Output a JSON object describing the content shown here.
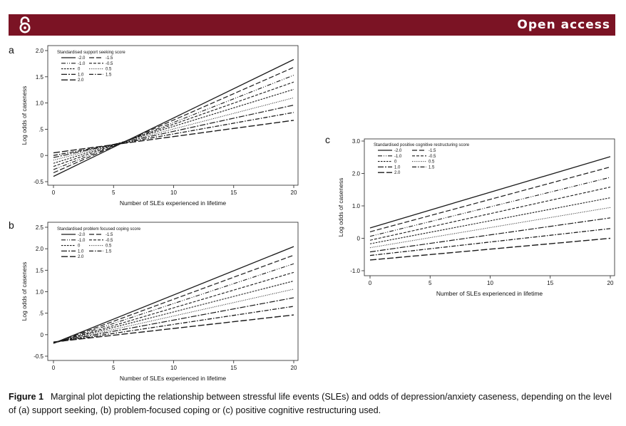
{
  "header": {
    "open_access_label": "Open access"
  },
  "caption": {
    "figure_label": "Figure 1",
    "text": "Marginal plot depicting the relationship between stressful life events (SLEs) and odds of depression/anxiety caseness, depending on the level of (a) support seeking, (b) problem-focused coping or (c) positive cognitive restructuring used."
  },
  "chart_data": [
    {
      "type": "line",
      "panel": "a",
      "legend_title": "Standardised support seeking score",
      "xlabel": "Number of SLEs experienced in lifetime",
      "ylabel": "Log odds of caseness",
      "xlim": [
        0,
        20
      ],
      "ylim": [
        -0.5,
        2.0
      ],
      "xticks": [
        0,
        5,
        10,
        15,
        20
      ],
      "yticks": [
        -0.5,
        0,
        0.5,
        1.0,
        1.5,
        2.0
      ],
      "ytick_labels": [
        "-0.5",
        "0",
        ".5",
        "1.0",
        "1.5",
        "2.0"
      ],
      "series": [
        {
          "name": "-2.0",
          "x": [
            0,
            20
          ],
          "y": [
            -0.4,
            1.83
          ]
        },
        {
          "name": "-1.5",
          "x": [
            0,
            20
          ],
          "y": [
            -0.33,
            1.68
          ]
        },
        {
          "name": "-1.0",
          "x": [
            0,
            20
          ],
          "y": [
            -0.27,
            1.53
          ]
        },
        {
          "name": "-0.5",
          "x": [
            0,
            20
          ],
          "y": [
            -0.21,
            1.4
          ]
        },
        {
          "name": "0",
          "x": [
            0,
            20
          ],
          "y": [
            -0.15,
            1.26
          ]
        },
        {
          "name": "0.5",
          "x": [
            0,
            20
          ],
          "y": [
            -0.09,
            1.1
          ]
        },
        {
          "name": "1.0",
          "x": [
            0,
            20
          ],
          "y": [
            -0.04,
            0.96
          ]
        },
        {
          "name": "1.5",
          "x": [
            0,
            20
          ],
          "y": [
            0.0,
            0.82
          ]
        },
        {
          "name": "2.0",
          "x": [
            0,
            20
          ],
          "y": [
            0.05,
            0.67
          ]
        }
      ]
    },
    {
      "type": "line",
      "panel": "b",
      "legend_title": "Standardised problem focused coping score",
      "xlabel": "Number of SLEs experienced in lifetime",
      "ylabel": "Log odds of caseness",
      "xlim": [
        0,
        20
      ],
      "ylim": [
        -0.5,
        2.5
      ],
      "xticks": [
        0,
        5,
        10,
        15,
        20
      ],
      "yticks": [
        -0.5,
        0,
        0.5,
        1.0,
        1.5,
        2.0,
        2.5
      ],
      "ytick_labels": [
        "-0.5",
        "0",
        ".5",
        "1.0",
        "1.5",
        "2.0",
        "2.5"
      ],
      "series": [
        {
          "name": "-2.0",
          "x": [
            0,
            20
          ],
          "y": [
            -0.2,
            2.05
          ]
        },
        {
          "name": "-1.5",
          "x": [
            0,
            20
          ],
          "y": [
            -0.2,
            1.85
          ]
        },
        {
          "name": "-1.0",
          "x": [
            0,
            20
          ],
          "y": [
            -0.2,
            1.65
          ]
        },
        {
          "name": "-0.5",
          "x": [
            0,
            20
          ],
          "y": [
            -0.2,
            1.45
          ]
        },
        {
          "name": "0",
          "x": [
            0,
            20
          ],
          "y": [
            -0.19,
            1.25
          ]
        },
        {
          "name": "0.5",
          "x": [
            0,
            20
          ],
          "y": [
            -0.19,
            1.06
          ]
        },
        {
          "name": "1.0",
          "x": [
            0,
            20
          ],
          "y": [
            -0.18,
            0.86
          ]
        },
        {
          "name": "1.5",
          "x": [
            0,
            20
          ],
          "y": [
            -0.18,
            0.66
          ]
        },
        {
          "name": "2.0",
          "x": [
            0,
            20
          ],
          "y": [
            -0.17,
            0.46
          ]
        }
      ]
    },
    {
      "type": "line",
      "panel": "c",
      "legend_title": "Standardised positive cognitive restructuring score",
      "xlabel": "Number of SLEs experienced in lifetime",
      "ylabel": "Log odds of caseness",
      "xlim": [
        0,
        20
      ],
      "ylim": [
        -1.0,
        3.0
      ],
      "xticks": [
        0,
        5,
        10,
        15,
        20
      ],
      "yticks": [
        -1.0,
        0,
        1.0,
        2.0,
        3.0
      ],
      "ytick_labels": [
        "-1.0",
        "0",
        "1.0",
        "2.0",
        "3.0"
      ],
      "series": [
        {
          "name": "-2.0",
          "x": [
            0,
            20
          ],
          "y": [
            0.32,
            2.52
          ]
        },
        {
          "name": "-1.5",
          "x": [
            0,
            20
          ],
          "y": [
            0.2,
            2.2
          ]
        },
        {
          "name": "-1.0",
          "x": [
            0,
            20
          ],
          "y": [
            0.06,
            1.88
          ]
        },
        {
          "name": "-0.5",
          "x": [
            0,
            20
          ],
          "y": [
            -0.06,
            1.58
          ]
        },
        {
          "name": "0",
          "x": [
            0,
            20
          ],
          "y": [
            -0.17,
            1.25
          ]
        },
        {
          "name": "0.5",
          "x": [
            0,
            20
          ],
          "y": [
            -0.29,
            0.95
          ]
        },
        {
          "name": "1.0",
          "x": [
            0,
            20
          ],
          "y": [
            -0.42,
            0.63
          ]
        },
        {
          "name": "1.5",
          "x": [
            0,
            20
          ],
          "y": [
            -0.53,
            0.3
          ]
        },
        {
          "name": "2.0",
          "x": [
            0,
            20
          ],
          "y": [
            -0.67,
            0.0
          ]
        }
      ]
    }
  ]
}
